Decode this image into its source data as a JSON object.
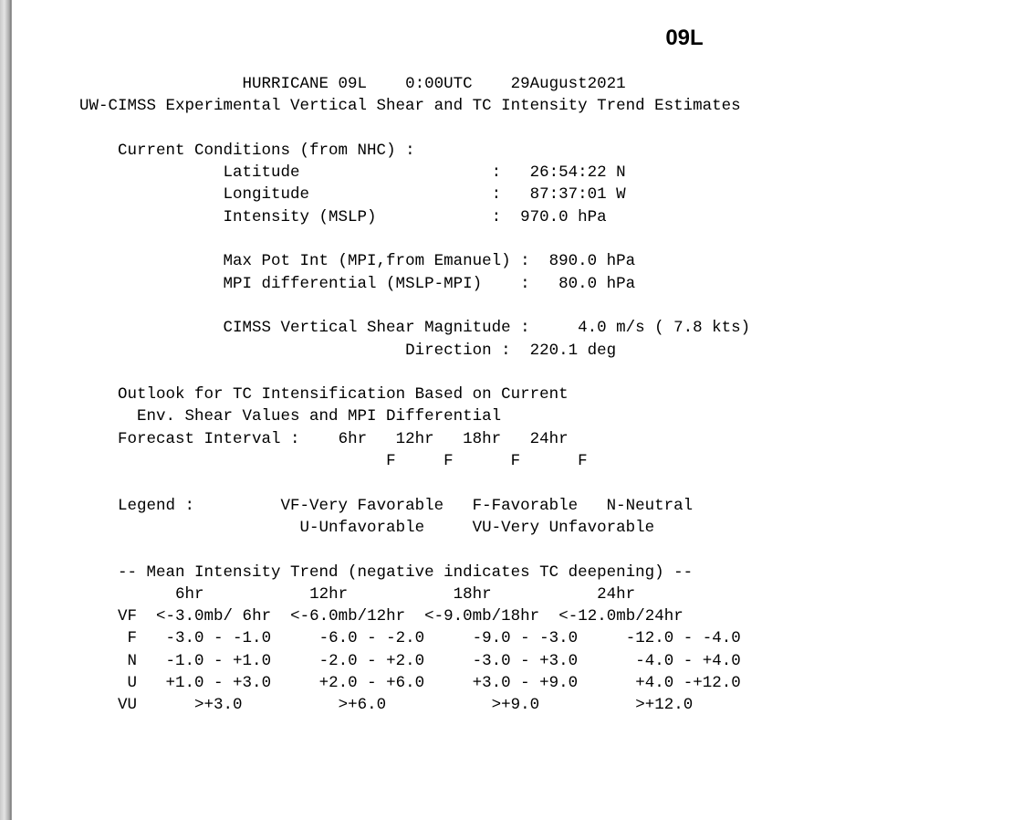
{
  "heading": "09L",
  "report": {
    "title": {
      "storm": "HURRICANE 09L",
      "time": "0:00UTC",
      "date": "29August2021",
      "subtitle": "UW-CIMSS Experimental Vertical Shear and TC Intensity Trend Estimates"
    },
    "conditions": {
      "header": "Current Conditions (from NHC) :",
      "latitude_label": "Latitude",
      "latitude_value": "26:54:22 N",
      "longitude_label": "Longitude",
      "longitude_value": "87:37:01 W",
      "intensity_label": "Intensity (MSLP)",
      "intensity_value": "970.0 hPa",
      "mpi_label": "Max Pot Int (MPI,from Emanuel)",
      "mpi_value": "890.0 hPa",
      "mpi_diff_label": "MPI differential (MSLP-MPI)",
      "mpi_diff_value": "80.0 hPa",
      "shear_label": "CIMSS Vertical Shear Magnitude",
      "shear_value": "4.0 m/s ( 7.8 kts)",
      "direction_label": "Direction",
      "direction_value": "220.1 deg"
    },
    "outlook": {
      "line1": "Outlook for TC Intensification Based on Current",
      "line2": "Env. Shear Values and MPI Differential",
      "interval_label": "Forecast Interval :",
      "intervals": [
        "6hr",
        "12hr",
        "18hr",
        "24hr"
      ],
      "ratings": [
        "F",
        "F",
        "F",
        "F"
      ]
    },
    "legend": {
      "label": "Legend :",
      "vf": "VF-Very Favorable",
      "f": "F-Favorable",
      "n": "N-Neutral",
      "u": "U-Unfavorable",
      "vu": "VU-Very Unfavorable"
    },
    "trend": {
      "header": "-- Mean Intensity Trend (negative indicates TC deepening) --",
      "columns": [
        "6hr",
        "12hr",
        "18hr",
        "24hr"
      ],
      "rows": [
        {
          "cat": "VF",
          "cells": [
            "<-3.0mb/ 6hr",
            "<-6.0mb/12hr",
            "<-9.0mb/18hr",
            "<-12.0mb/24hr"
          ]
        },
        {
          "cat": "F",
          "cells": [
            "-3.0 - -1.0",
            "-6.0 - -2.0",
            "-9.0 - -3.0",
            "-12.0 - -4.0"
          ]
        },
        {
          "cat": "N",
          "cells": [
            "-1.0 - +1.0",
            "-2.0 - +2.0",
            "-3.0 - +3.0",
            "-4.0 - +4.0"
          ]
        },
        {
          "cat": "U",
          "cells": [
            "+1.0 - +3.0",
            "+2.0 - +6.0",
            "+3.0 - +9.0",
            "+4.0 -+12.0"
          ]
        },
        {
          "cat": "VU",
          "cells": [
            ">+3.0",
            ">+6.0",
            ">+9.0",
            ">+12.0"
          ]
        }
      ]
    }
  }
}
